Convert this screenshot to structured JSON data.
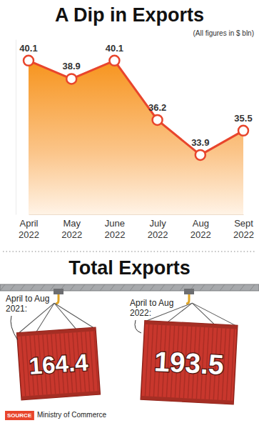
{
  "chart_data": [
    {
      "type": "area",
      "title": "A Dip in Exports",
      "subtitle": "(All figures in $ bln)",
      "categories": [
        "April 2022",
        "May 2022",
        "June 2022",
        "July 2022",
        "Aug 2022",
        "Sept 2022"
      ],
      "values": [
        40.1,
        38.9,
        40.1,
        36.2,
        33.9,
        35.5
      ],
      "color": "#e8452c",
      "marker": "circle",
      "data_labels": true,
      "tick_labels": "x",
      "ylim": [
        30,
        41.5
      ]
    },
    {
      "type": "pictogram",
      "title": "Total Exports",
      "categories": [
        "April to Aug 2021:",
        "April to Aug 2022:"
      ],
      "values": [
        164.4,
        193.5
      ],
      "color": "#c8372d",
      "data_labels": true
    }
  ],
  "source": {
    "label": "SOURCE",
    "text": "Ministry of Commerce"
  }
}
